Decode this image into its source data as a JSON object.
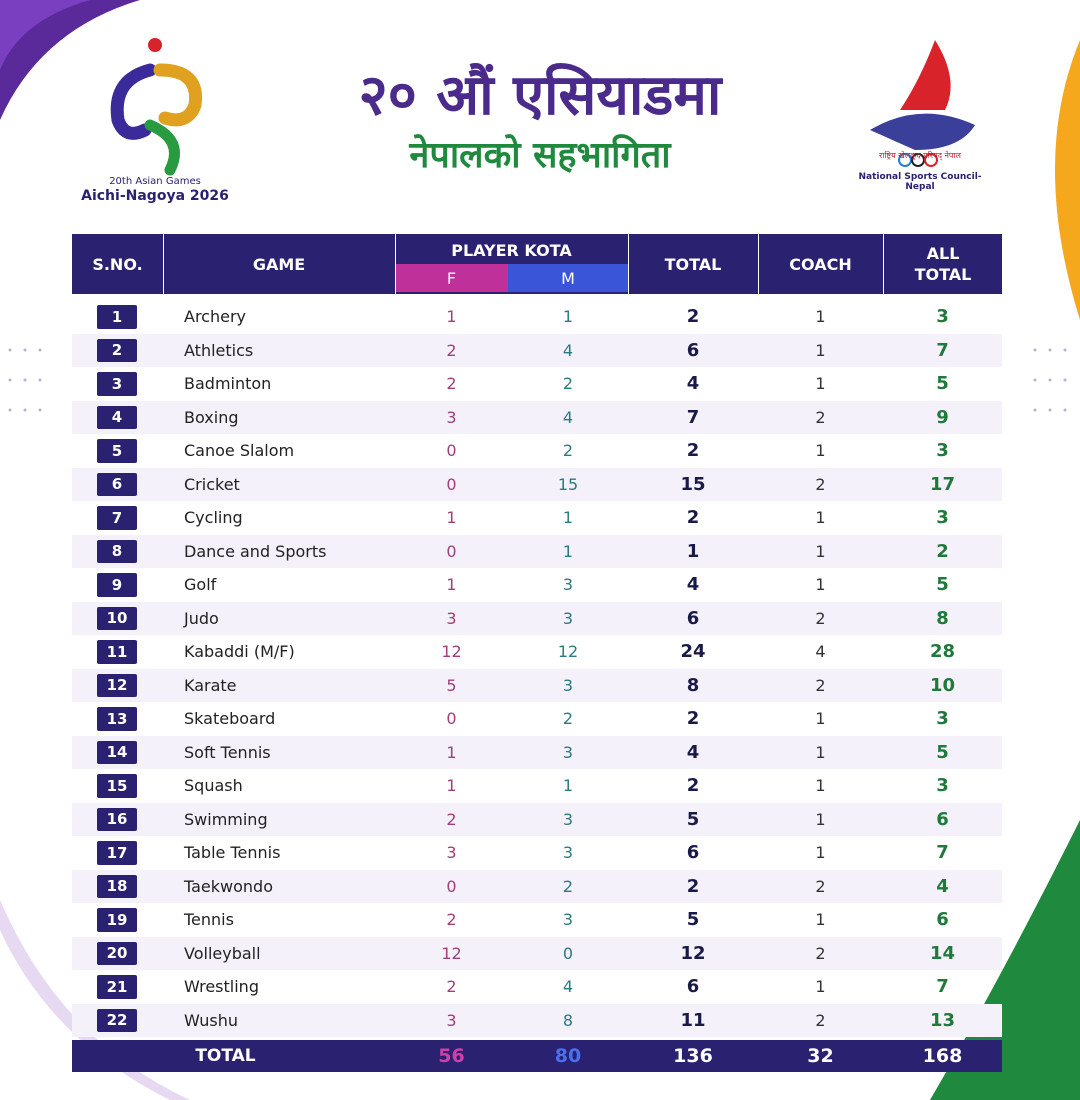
{
  "header": {
    "title": "२० औं एसियाडमा",
    "subtitle": "नेपालको सहभागिता"
  },
  "left_logo": {
    "line1": "20th Asian Games",
    "line2": "Aichi-Nagoya 2026"
  },
  "right_logo": {
    "arc_text": "राष्ट्रिय खेलकुद परिषद् नेपाल",
    "org": "National Sports Council-Nepal"
  },
  "table": {
    "columns": {
      "sno": "S.NO.",
      "game": "GAME",
      "player_kota": "PLAYER KOTA",
      "f": "F",
      "m": "M",
      "total": "TOTAL",
      "coach": "COACH",
      "all_total": "ALL TOTAL"
    },
    "rows": [
      [
        1,
        "Archery",
        1,
        1,
        2,
        1,
        3
      ],
      [
        2,
        "Athletics",
        2,
        4,
        6,
        1,
        7
      ],
      [
        3,
        "Badminton",
        2,
        2,
        4,
        1,
        5
      ],
      [
        4,
        "Boxing",
        3,
        4,
        7,
        2,
        9
      ],
      [
        5,
        "Canoe Slalom",
        0,
        2,
        2,
        1,
        3
      ],
      [
        6,
        "Cricket",
        0,
        15,
        15,
        2,
        17
      ],
      [
        7,
        "Cycling",
        1,
        1,
        2,
        1,
        3
      ],
      [
        8,
        "Dance and Sports",
        0,
        1,
        1,
        1,
        2
      ],
      [
        9,
        "Golf",
        1,
        3,
        4,
        1,
        5
      ],
      [
        10,
        "Judo",
        3,
        3,
        6,
        2,
        8
      ],
      [
        11,
        "Kabaddi (M/F)",
        12,
        12,
        24,
        4,
        28
      ],
      [
        12,
        "Karate",
        5,
        3,
        8,
        2,
        10
      ],
      [
        13,
        "Skateboard",
        0,
        2,
        2,
        1,
        3
      ],
      [
        14,
        "Soft Tennis",
        1,
        3,
        4,
        1,
        5
      ],
      [
        15,
        "Squash",
        1,
        1,
        2,
        1,
        3
      ],
      [
        16,
        "Swimming",
        2,
        3,
        5,
        1,
        6
      ],
      [
        17,
        "Table Tennis",
        3,
        3,
        6,
        1,
        7
      ],
      [
        18,
        "Taekwondo",
        0,
        2,
        2,
        2,
        4
      ],
      [
        19,
        "Tennis",
        2,
        3,
        5,
        1,
        6
      ],
      [
        20,
        "Volleyball",
        12,
        0,
        12,
        2,
        14
      ],
      [
        21,
        "Wrestling",
        2,
        4,
        6,
        1,
        7
      ],
      [
        22,
        "Wushu",
        3,
        8,
        11,
        2,
        13
      ]
    ],
    "footer": {
      "label": "TOTAL",
      "f": 56,
      "m": 80,
      "total": 136,
      "coach": 32,
      "all_total": 168
    }
  }
}
